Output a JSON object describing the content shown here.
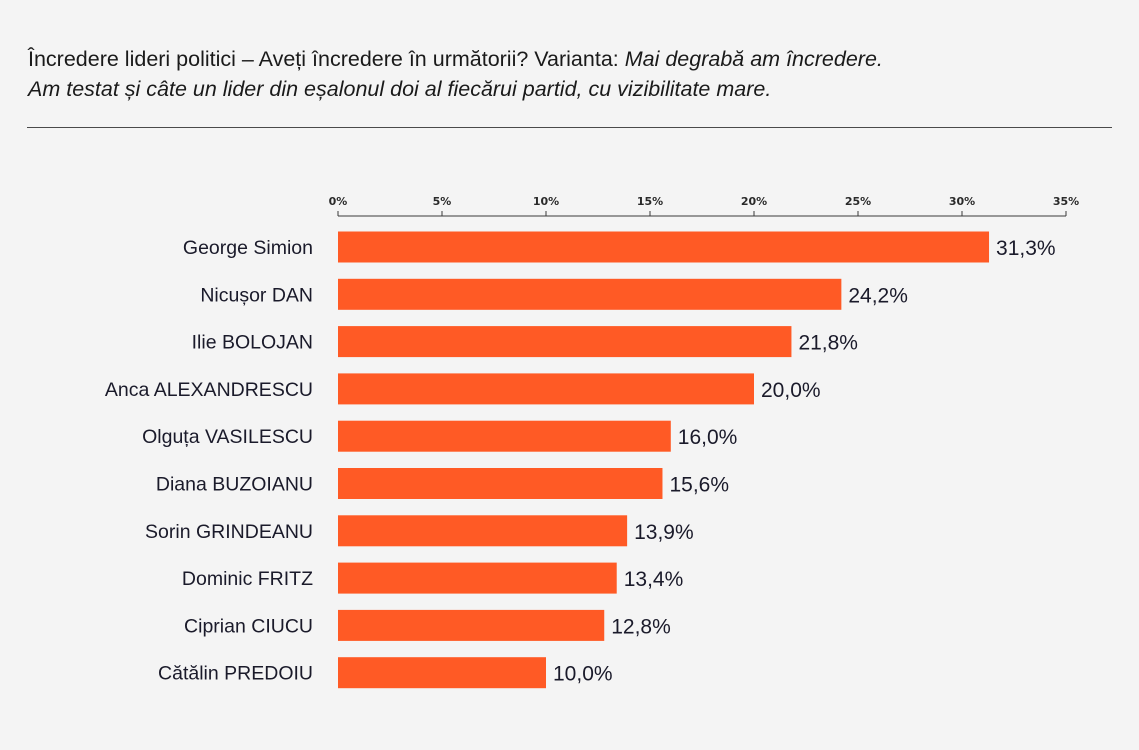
{
  "header": {
    "line1_regular": "Încredere lideri politici – Aveți încredere în următorii? Varianta: ",
    "line1_italic": "Mai degrabă am încredere.",
    "line2_italic": "Am testat și câte un lider din eșalonul doi al fiecărui partid, cu vizibilitate mare."
  },
  "chart_data": {
    "type": "bar",
    "orientation": "horizontal",
    "categories": [
      "George Simion",
      "Nicușor DAN",
      "Ilie BOLOJAN",
      "Anca ALEXANDRESCU",
      "Olguța VASILESCU",
      "Diana BUZOIANU",
      "Sorin GRINDEANU",
      "Dominic FRITZ",
      "Ciprian CIUCU",
      "Cătălin PREDOIU"
    ],
    "values": [
      31.3,
      24.2,
      21.8,
      20.0,
      16.0,
      15.6,
      13.9,
      13.4,
      12.8,
      10.0
    ],
    "value_labels": [
      "31,3%",
      "24,2%",
      "21,8%",
      "20,0%",
      "16,0%",
      "15,6%",
      "13,9%",
      "13,4%",
      "12,8%",
      "10,0%"
    ],
    "x_ticks": [
      "0%",
      "5%",
      "10%",
      "15%",
      "20%",
      "25%",
      "30%",
      "35%"
    ],
    "x_tick_values": [
      0,
      5,
      10,
      15,
      20,
      25,
      30,
      35
    ],
    "xlim": [
      0,
      35
    ],
    "x_axis_position": "top",
    "grid": false,
    "bar_color": "#ff5a25"
  }
}
